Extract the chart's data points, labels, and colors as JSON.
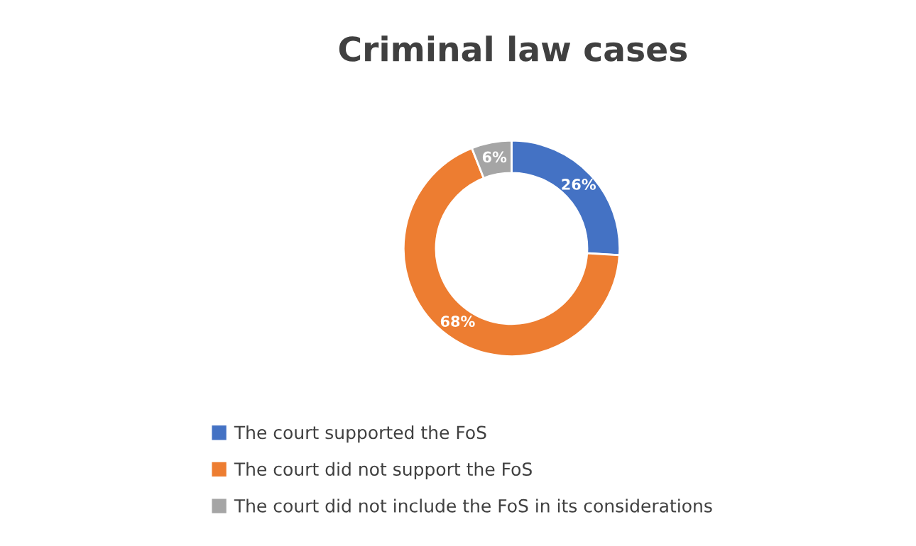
{
  "chart_data": {
    "type": "donut",
    "title": "Criminal law cases",
    "categories": [
      "The court supported the FoS",
      "The court did not support the FoS",
      "The court did not include the FoS in its considerations"
    ],
    "values": [
      26,
      68,
      6
    ],
    "colors": [
      "#4472c4",
      "#ed7d31",
      "#a5a5a5"
    ],
    "value_labels": [
      "26%",
      "68%",
      "6%"
    ],
    "legend": "bottom"
  }
}
